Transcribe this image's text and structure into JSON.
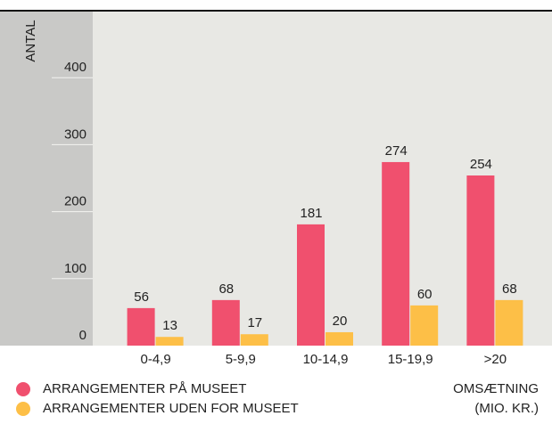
{
  "chart_data": {
    "type": "bar",
    "ylabel": "ANTAL",
    "xlabel": [
      "OMSÆTNING",
      "(MIO. KR.)"
    ],
    "categories": [
      "0-4,9",
      "5-9,9",
      "10-14,9",
      "15-19,9",
      ">20"
    ],
    "series": [
      {
        "name": "ARRANGEMENTER PÅ MUSEET",
        "color": "#f0506e",
        "values": [
          56,
          68,
          181,
          274,
          254
        ]
      },
      {
        "name": "ARRANGEMENTER UDEN FOR MUSEET",
        "color": "#fdbf47",
        "values": [
          13,
          17,
          20,
          60,
          68
        ]
      }
    ],
    "ylim": [
      0,
      500
    ],
    "yticks": [
      0,
      100,
      200,
      300,
      400
    ],
    "legend": "bottom-left"
  }
}
